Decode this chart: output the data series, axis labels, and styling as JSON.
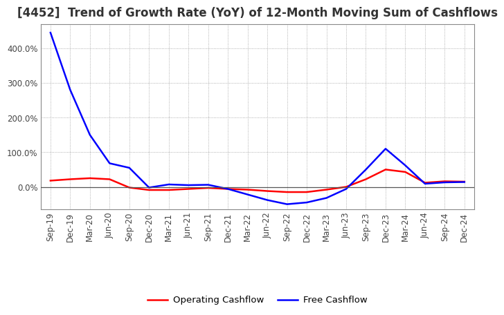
{
  "title": "[4452]  Trend of Growth Rate (YoY) of 12-Month Moving Sum of Cashflows",
  "background_color": "#ffffff",
  "plot_bg_color": "#ffffff",
  "grid_color": "#999999",
  "x_labels": [
    "Sep-19",
    "Dec-19",
    "Mar-20",
    "Jun-20",
    "Sep-20",
    "Dec-20",
    "Mar-21",
    "Jun-21",
    "Sep-21",
    "Dec-21",
    "Mar-22",
    "Jun-22",
    "Sep-22",
    "Dec-22",
    "Mar-23",
    "Jun-23",
    "Sep-23",
    "Dec-23",
    "Mar-24",
    "Jun-24",
    "Sep-24",
    "Dec-24"
  ],
  "operating_cashflow": [
    0.18,
    0.22,
    0.25,
    0.22,
    -0.02,
    -0.09,
    -0.09,
    -0.06,
    -0.03,
    -0.06,
    -0.08,
    -0.12,
    -0.15,
    -0.15,
    -0.08,
    0.0,
    0.22,
    0.5,
    0.43,
    0.12,
    0.16,
    0.15
  ],
  "free_cashflow": [
    4.45,
    2.8,
    1.5,
    0.68,
    0.55,
    -0.02,
    0.07,
    0.05,
    0.06,
    -0.06,
    -0.22,
    -0.38,
    -0.5,
    -0.45,
    -0.32,
    -0.06,
    0.5,
    1.1,
    0.62,
    0.09,
    0.13,
    0.14
  ],
  "op_color": "#ff0000",
  "free_color": "#0000ff",
  "ylim_min": -0.65,
  "ylim_max": 4.7,
  "yticks": [
    0.0,
    1.0,
    2.0,
    3.0,
    4.0
  ],
  "ytick_labels": [
    "0.0%",
    "100.0%",
    "200.0%",
    "300.0%",
    "400.0%"
  ],
  "line_width": 1.8,
  "title_fontsize": 12,
  "tick_fontsize": 8.5
}
